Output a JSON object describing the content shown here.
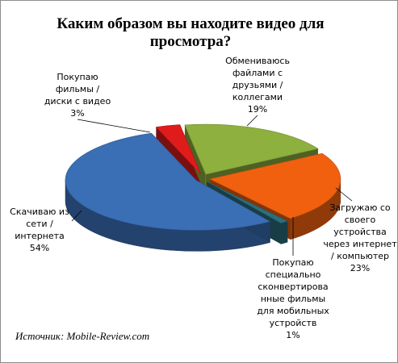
{
  "chart_data": {
    "type": "pie3d",
    "title": "Каким образом вы находите видео для просмотра?",
    "source": "Источник: Mobile-Review.com",
    "categories": [
      [
        "Покупаю",
        "фильмы /",
        "диски с видео"
      ],
      [
        "Обмениваюсь",
        "файлами с",
        "друзьями /",
        "коллегами"
      ],
      [
        "Загружаю со",
        "своего",
        "устройства",
        "через интернет",
        "/ компьютер"
      ],
      [
        "Покупаю",
        "специально",
        "сконвертирова",
        "нные фильмы",
        "для мобильных",
        "устройств"
      ],
      [
        "Скачиваю из",
        "сети /",
        "интернета"
      ]
    ],
    "values": [
      3,
      19,
      23,
      1,
      54
    ],
    "value_labels": [
      "3%",
      "19%",
      "23%",
      "1%",
      "54%"
    ],
    "colors": [
      "#e01b1b",
      "#8db03e",
      "#f0600f",
      "#2b6f7e",
      "#3a6eb5"
    ]
  }
}
